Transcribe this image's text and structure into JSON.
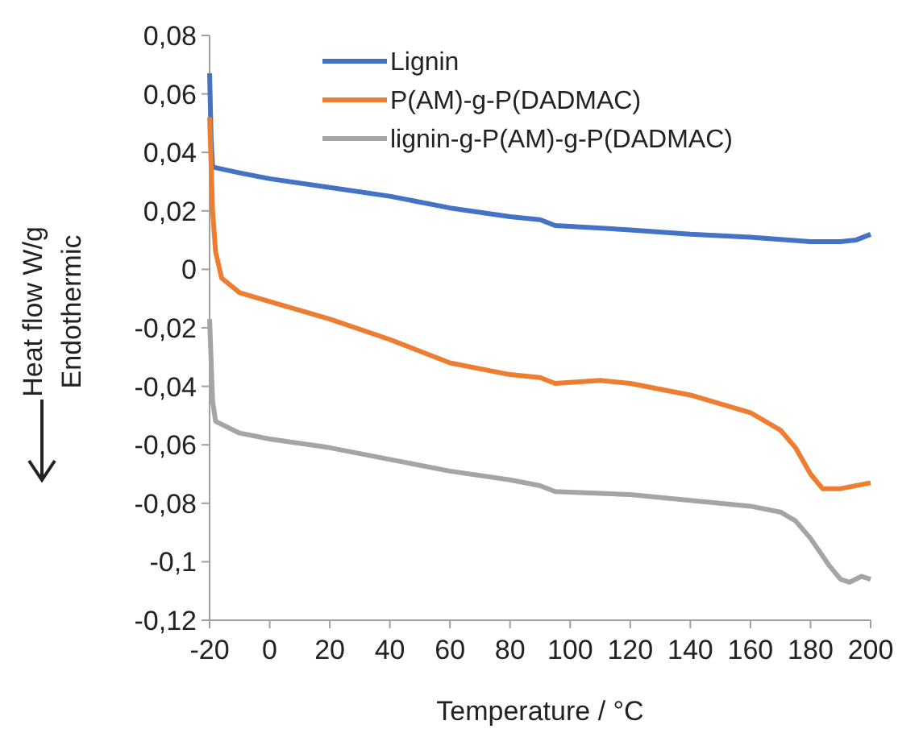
{
  "chart_data": {
    "type": "line",
    "xlabel": "Temperature / °C",
    "ylabel": "Heat flow W/g\nEndothermic",
    "xlim": [
      -20,
      200
    ],
    "xticks": [
      -20,
      0,
      20,
      40,
      60,
      80,
      100,
      120,
      140,
      160,
      180,
      200
    ],
    "ylim": [
      -0.12,
      0.08
    ],
    "yticks": [
      {
        "value": -0.12,
        "label": "-0,12"
      },
      {
        "value": -0.1,
        "label": "-0,1"
      },
      {
        "value": -0.08,
        "label": "-0,08"
      },
      {
        "value": -0.06,
        "label": "-0,06"
      },
      {
        "value": -0.04,
        "label": "-0,04"
      },
      {
        "value": -0.02,
        "label": "-0,02"
      },
      {
        "value": 0,
        "label": "0"
      },
      {
        "value": 0.02,
        "label": "0,02"
      },
      {
        "value": 0.04,
        "label": "0,04"
      },
      {
        "value": 0.06,
        "label": "0,06"
      },
      {
        "value": 0.08,
        "label": "0,08"
      }
    ],
    "grid": false,
    "legend": "top",
    "marker": "none",
    "line_style": "solid",
    "series": [
      {
        "name": "Lignin",
        "color": "#4472c4",
        "x": [
          -20,
          -19.5,
          -19,
          -10,
          0,
          20,
          40,
          60,
          80,
          90,
          95,
          120,
          140,
          160,
          180,
          190,
          195,
          200
        ],
        "values": [
          0.067,
          0.045,
          0.035,
          0.033,
          0.031,
          0.028,
          0.025,
          0.021,
          0.018,
          0.017,
          0.015,
          0.0135,
          0.012,
          0.011,
          0.0095,
          0.0095,
          0.01,
          0.012
        ]
      },
      {
        "name": "P(AM)-g-P(DADMAC)",
        "color": "#ed7d31",
        "x": [
          -20,
          -19,
          -18,
          -16,
          -10,
          0,
          20,
          40,
          50,
          60,
          80,
          90,
          95,
          110,
          120,
          140,
          160,
          170,
          175,
          180,
          184,
          190,
          200
        ],
        "values": [
          0.052,
          0.02,
          0.006,
          -0.003,
          -0.008,
          -0.011,
          -0.017,
          -0.024,
          -0.028,
          -0.032,
          -0.036,
          -0.037,
          -0.039,
          -0.038,
          -0.039,
          -0.043,
          -0.049,
          -0.055,
          -0.061,
          -0.07,
          -0.075,
          -0.075,
          -0.073
        ]
      },
      {
        "name": "lignin-g-P(AM)-g-P(DADMAC)",
        "color": "#a5a5a5",
        "x": [
          -20,
          -19,
          -18,
          -10,
          0,
          20,
          40,
          60,
          80,
          90,
          95,
          120,
          140,
          160,
          170,
          175,
          180,
          186,
          190,
          193,
          197,
          200
        ],
        "values": [
          -0.017,
          -0.045,
          -0.052,
          -0.056,
          -0.058,
          -0.061,
          -0.065,
          -0.069,
          -0.072,
          -0.074,
          -0.076,
          -0.077,
          -0.079,
          -0.081,
          -0.083,
          -0.086,
          -0.092,
          -0.101,
          -0.106,
          -0.107,
          -0.105,
          -0.106
        ]
      }
    ]
  }
}
